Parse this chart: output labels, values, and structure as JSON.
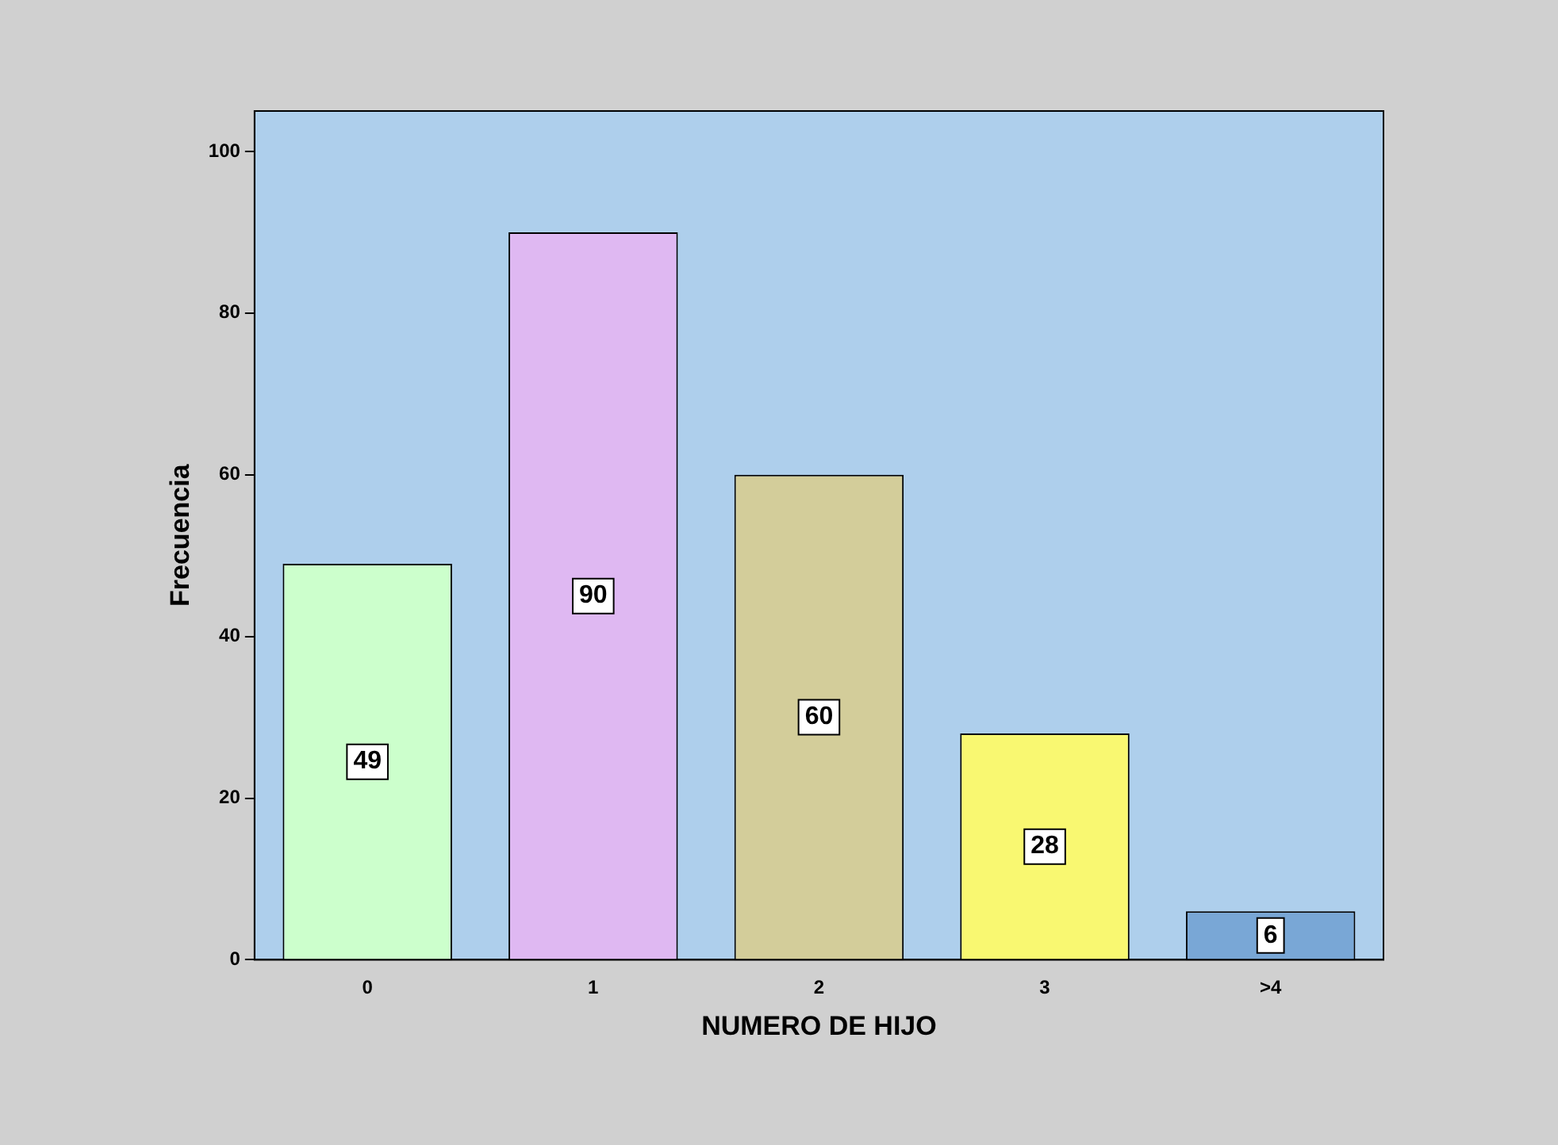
{
  "chart_data": {
    "type": "bar",
    "xlabel": "NUMERO DE HIJO",
    "ylabel": "Frecuencia",
    "categories": [
      "0",
      "1",
      "2",
      "3",
      ">4"
    ],
    "values": [
      49,
      90,
      60,
      28,
      6
    ],
    "colors": [
      "#ccffcc",
      "#dfb8f2",
      "#d3cd9a",
      "#f9f871",
      "#79a7d6"
    ],
    "ylim": [
      0,
      105
    ],
    "yticks": [
      0,
      20,
      40,
      60,
      80,
      100
    ],
    "grid": false,
    "legend": false,
    "data_labels": true
  }
}
